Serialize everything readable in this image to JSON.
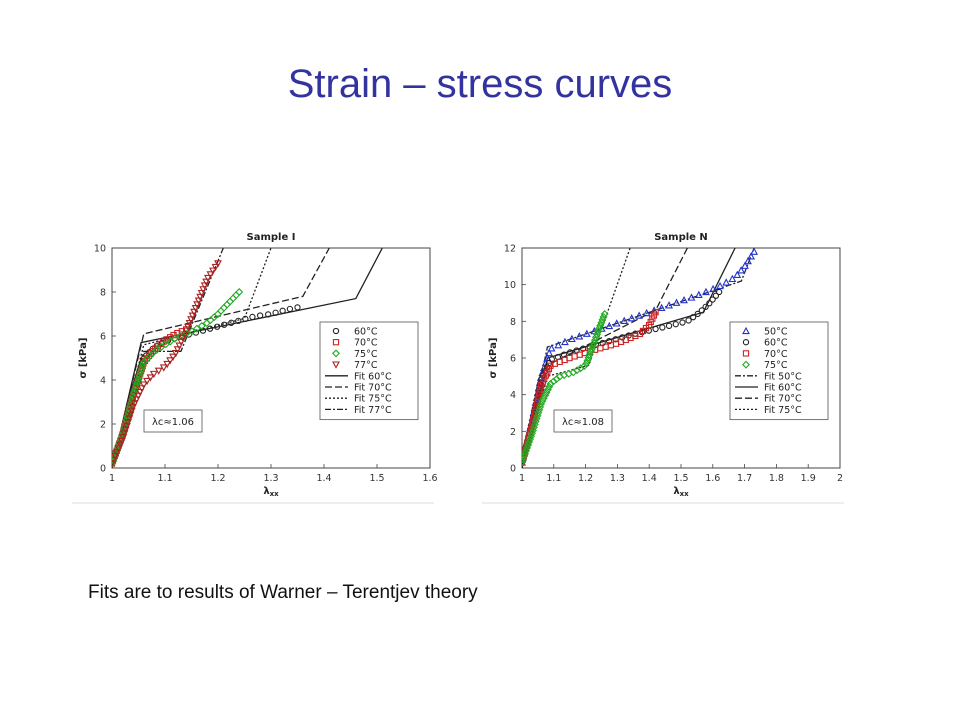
{
  "slide": {
    "title": "Strain – stress curves",
    "caption": "Fits are to results of Warner – Terentjev theory"
  },
  "chart_data": [
    {
      "type": "scatter",
      "title": "Sample I",
      "xlabel": "λxx",
      "ylabel": "σ [kPa]",
      "xlim": [
        1,
        1.6
      ],
      "ylim": [
        0,
        10
      ],
      "xticks": [
        "1",
        "1.1",
        "1.2",
        "1.3",
        "1.4",
        "1.5",
        "1.6"
      ],
      "yticks": [
        "0",
        "2",
        "4",
        "6",
        "8",
        "10"
      ],
      "annotation": "λc≈1.06",
      "legend_position": "right",
      "series": [
        {
          "name": "60°C",
          "kind": "points",
          "marker": "circle",
          "color": "#222222",
          "x": [
            1.0,
            1.02,
            1.04,
            1.06,
            1.08,
            1.1,
            1.12,
            1.15,
            1.18,
            1.21,
            1.24,
            1.27,
            1.3,
            1.33,
            1.35
          ],
          "y": [
            0.2,
            1.6,
            3.5,
            5.0,
            5.5,
            5.75,
            5.9,
            6.1,
            6.3,
            6.5,
            6.7,
            6.9,
            7.0,
            7.2,
            7.3
          ]
        },
        {
          "name": "70°C",
          "kind": "points",
          "marker": "square",
          "color": "#cc2222",
          "x": [
            1.0,
            1.02,
            1.04,
            1.06,
            1.08,
            1.1,
            1.12,
            1.14
          ],
          "y": [
            0.2,
            1.5,
            3.3,
            4.8,
            5.4,
            5.8,
            6.1,
            6.3
          ]
        },
        {
          "name": "75°C",
          "kind": "points",
          "marker": "diamond",
          "color": "#22aa22",
          "x": [
            1.0,
            1.02,
            1.04,
            1.06,
            1.08,
            1.1,
            1.12,
            1.15,
            1.18,
            1.2,
            1.22,
            1.24
          ],
          "y": [
            0.2,
            1.5,
            3.3,
            4.8,
            5.3,
            5.6,
            5.9,
            6.2,
            6.6,
            7.0,
            7.5,
            8.0
          ]
        },
        {
          "name": "77°C",
          "kind": "points",
          "marker": "triangle-down",
          "color": "#aa2222",
          "x": [
            1.0,
            1.02,
            1.04,
            1.06,
            1.08,
            1.1,
            1.12,
            1.14,
            1.16,
            1.18,
            1.2
          ],
          "y": [
            0.2,
            1.3,
            2.8,
            3.8,
            4.3,
            4.6,
            5.2,
            6.2,
            7.4,
            8.6,
            9.3
          ]
        },
        {
          "name": "Fit 60°C",
          "kind": "line",
          "dash": "",
          "color": "#222222",
          "x": [
            1.0,
            1.055,
            1.46,
            1.51
          ],
          "y": [
            0,
            5.7,
            7.7,
            10
          ]
        },
        {
          "name": "Fit 70°C",
          "kind": "line",
          "dash": "7,3",
          "color": "#222222",
          "x": [
            1.0,
            1.06,
            1.36,
            1.41
          ],
          "y": [
            0,
            6.1,
            7.8,
            10
          ]
        },
        {
          "name": "Fit 75°C",
          "kind": "line",
          "dash": "2,2",
          "color": "#222222",
          "x": [
            1.0,
            1.06,
            1.25,
            1.3
          ],
          "y": [
            0,
            5.6,
            6.8,
            10
          ]
        },
        {
          "name": "Fit 77°C",
          "kind": "line",
          "dash": "6,2,2,2",
          "color": "#222222",
          "x": [
            1.0,
            1.06,
            1.13,
            1.21
          ],
          "y": [
            0,
            5.3,
            5.3,
            10
          ]
        }
      ]
    },
    {
      "type": "scatter",
      "title": "Sample N",
      "xlabel": "λxx",
      "ylabel": "σ [kPa]",
      "xlim": [
        1,
        2
      ],
      "ylim": [
        0,
        12
      ],
      "xticks": [
        "1",
        "1.1",
        "1.2",
        "1.3",
        "1.4",
        "1.5",
        "1.6",
        "1.7",
        "1.8",
        "1.9",
        "2"
      ],
      "yticks": [
        "0",
        "2",
        "4",
        "6",
        "8",
        "10",
        "12"
      ],
      "annotation": "λc≈1.08",
      "legend_position": "right",
      "series": [
        {
          "name": "50°C",
          "kind": "points",
          "marker": "triangle",
          "color": "#2233cc",
          "x": [
            1.0,
            1.03,
            1.06,
            1.09,
            1.15,
            1.25,
            1.35,
            1.45,
            1.55,
            1.62,
            1.67,
            1.7,
            1.73
          ],
          "y": [
            0.3,
            2.5,
            5.0,
            6.5,
            7.0,
            7.6,
            8.2,
            8.8,
            9.4,
            9.9,
            10.4,
            11.0,
            11.8
          ]
        },
        {
          "name": "60°C",
          "kind": "points",
          "marker": "circle",
          "color": "#222222",
          "x": [
            1.0,
            1.03,
            1.06,
            1.09,
            1.15,
            1.25,
            1.35,
            1.45,
            1.52,
            1.56,
            1.59,
            1.62
          ],
          "y": [
            0.3,
            2.4,
            4.8,
            5.9,
            6.3,
            6.8,
            7.3,
            7.7,
            8.0,
            8.5,
            9.0,
            9.6
          ]
        },
        {
          "name": "70°C",
          "kind": "points",
          "marker": "square",
          "color": "#cc2222",
          "x": [
            1.0,
            1.03,
            1.06,
            1.09,
            1.15,
            1.22,
            1.3,
            1.37,
            1.4,
            1.42
          ],
          "y": [
            0.3,
            2.2,
            4.5,
            5.6,
            6.0,
            6.4,
            6.8,
            7.3,
            7.8,
            8.5
          ]
        },
        {
          "name": "75°C",
          "kind": "points",
          "marker": "diamond",
          "color": "#22aa22",
          "x": [
            1.0,
            1.03,
            1.06,
            1.09,
            1.12,
            1.16,
            1.2,
            1.22,
            1.24,
            1.26
          ],
          "y": [
            0.3,
            1.8,
            3.5,
            4.6,
            5.0,
            5.2,
            5.6,
            6.5,
            7.5,
            8.4
          ]
        },
        {
          "name": "Fit 50°C",
          "kind": "line",
          "dash": "6,2,2,2",
          "color": "#222222",
          "x": [
            1.0,
            1.08,
            1.69,
            1.73
          ],
          "y": [
            0,
            6.6,
            10.2,
            12
          ]
        },
        {
          "name": "Fit 60°C",
          "kind": "line",
          "dash": "",
          "color": "#222222",
          "x": [
            1.0,
            1.08,
            1.57,
            1.67
          ],
          "y": [
            0,
            6.0,
            8.5,
            12
          ]
        },
        {
          "name": "Fit 70°C",
          "kind": "line",
          "dash": "7,3",
          "color": "#222222",
          "x": [
            1.0,
            1.08,
            1.42,
            1.52
          ],
          "y": [
            0,
            5.6,
            8.6,
            12
          ]
        },
        {
          "name": "Fit 75°C",
          "kind": "line",
          "dash": "2,2",
          "color": "#222222",
          "x": [
            1.0,
            1.08,
            1.21,
            1.34
          ],
          "y": [
            0,
            5.0,
            5.6,
            12
          ]
        }
      ]
    }
  ]
}
